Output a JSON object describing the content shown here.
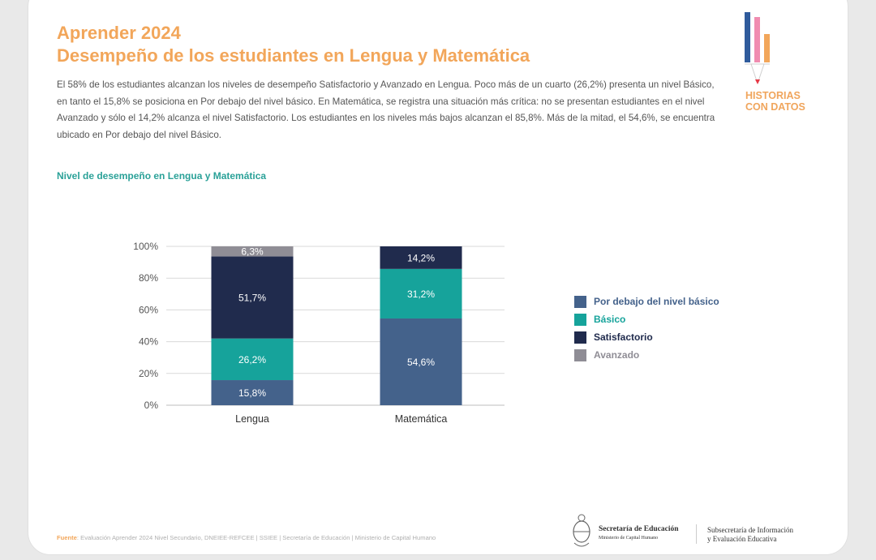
{
  "header": {
    "title_line1": "Aprender 2024",
    "title_line2": "Desempeño de los estudiantes en Lengua y Matemática",
    "intro": "El 58% de los estudiantes alcanzan los niveles de desempeño Satisfactorio y Avanzado en Lengua. Poco más de un cuarto (26,2%) presenta un nivel Básico, en tanto   el 15,8% se posiciona en Por debajo del nivel básico. En Matemática, se registra una situación más crítica: no se presentan estudiantes en el nivel Avanzado y sólo el 14,2% alcanza el nivel Satisfactorio. Los estudiantes en los niveles más bajos alcanzan el 85,8%. Más de la mitad, el 54,6%, se encuentra ubicado en Por debajo del nivel Básico."
  },
  "logo": {
    "line1": "HISTORIAS",
    "line2": "CON DATOS",
    "colors": [
      "#2f5b9c",
      "#f08cb0",
      "#f2a65a"
    ]
  },
  "chart_data": {
    "type": "bar",
    "stacked": true,
    "title": "Nivel de desempeño en Lengua y Matemática",
    "categories": [
      "Lengua",
      "Matemática"
    ],
    "ylim": [
      0,
      100
    ],
    "yticks": [
      "0%",
      "20%",
      "40%",
      "60%",
      "80%",
      "100%"
    ],
    "ytick_values": [
      0,
      20,
      40,
      60,
      80,
      100
    ],
    "grid": true,
    "legend_position": "right",
    "series": [
      {
        "name": "Por debajo del nivel básico",
        "color": "#44628b",
        "values": [
          15.8,
          54.6
        ],
        "labels": [
          "15,8%",
          "54,6%"
        ]
      },
      {
        "name": "Básico",
        "color": "#16a39b",
        "values": [
          26.2,
          31.2
        ],
        "labels": [
          "26,2%",
          "31,2%"
        ]
      },
      {
        "name": "Satisfactorio",
        "color": "#202b4d",
        "values": [
          51.7,
          14.2
        ],
        "labels": [
          "51,7%",
          "14,2%"
        ]
      },
      {
        "name": "Avanzado",
        "color": "#8f8d95",
        "values": [
          6.3,
          0
        ],
        "labels": [
          "6,3%",
          ""
        ]
      }
    ]
  },
  "footer": {
    "source_label": "Fuente",
    "source_text": ": Evaluación Aprender 2024 Nivel Secundario, DNEIEE-REFCEE | SSIEE | Secretaría de Educación | Ministerio de Capital Humano",
    "org_main": "Secretaría de Educación",
    "org_sub": "Ministerio de Capital Humano",
    "org_right_line1": "Subsecretaría de Información",
    "org_right_line2": "y Evaluación Educativa"
  }
}
